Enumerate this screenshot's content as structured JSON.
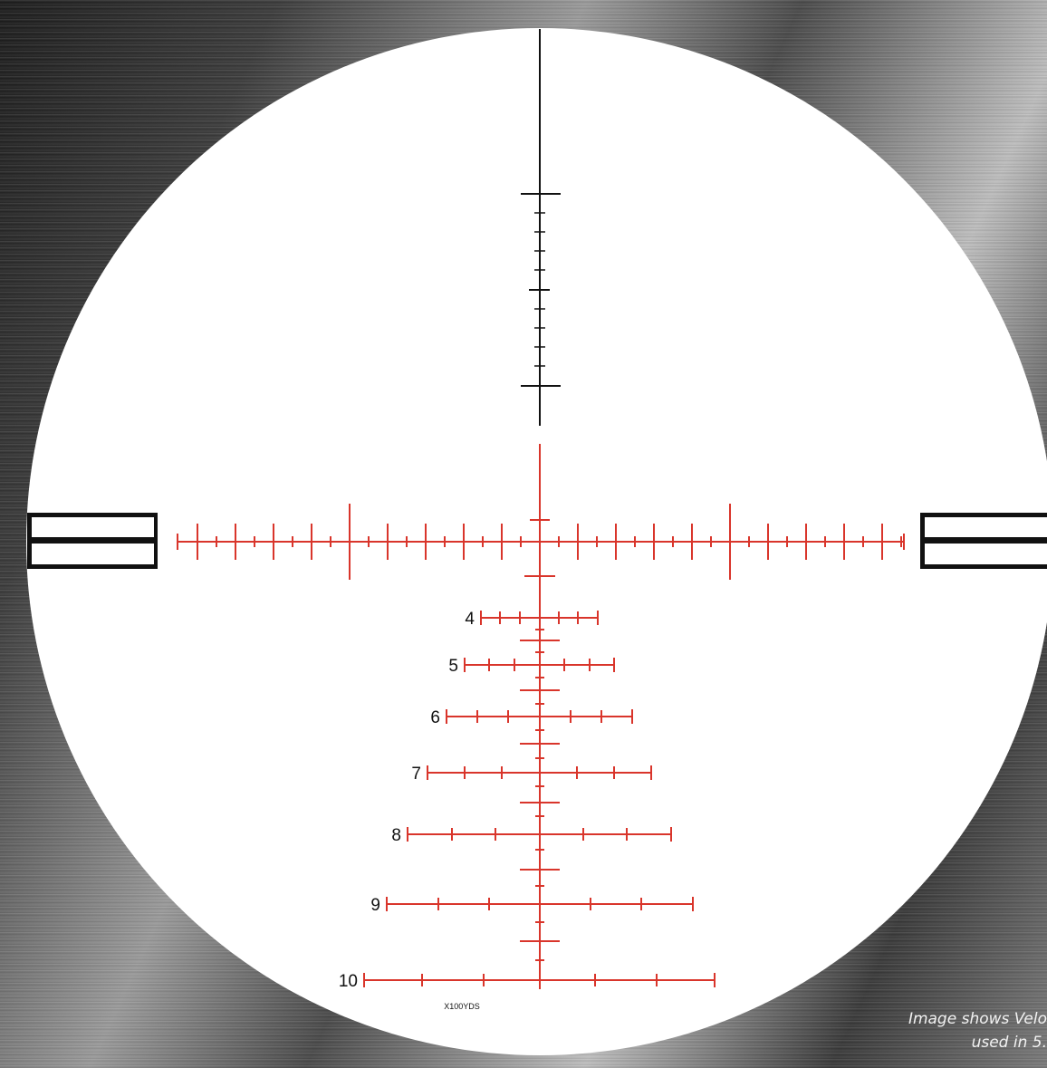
{
  "reticle": {
    "colors": {
      "reticle_red": "#d9352b",
      "reticle_black": "#111111",
      "field_white": "#ffffff"
    },
    "holdover_rows": [
      {
        "label": "4"
      },
      {
        "label": "5"
      },
      {
        "label": "6"
      },
      {
        "label": "7"
      },
      {
        "label": "8"
      },
      {
        "label": "9"
      },
      {
        "label": "10"
      }
    ],
    "range_unit_label": "X100YDS"
  },
  "caption": {
    "line1": "Image shows Velo",
    "line2": "used in 5."
  }
}
